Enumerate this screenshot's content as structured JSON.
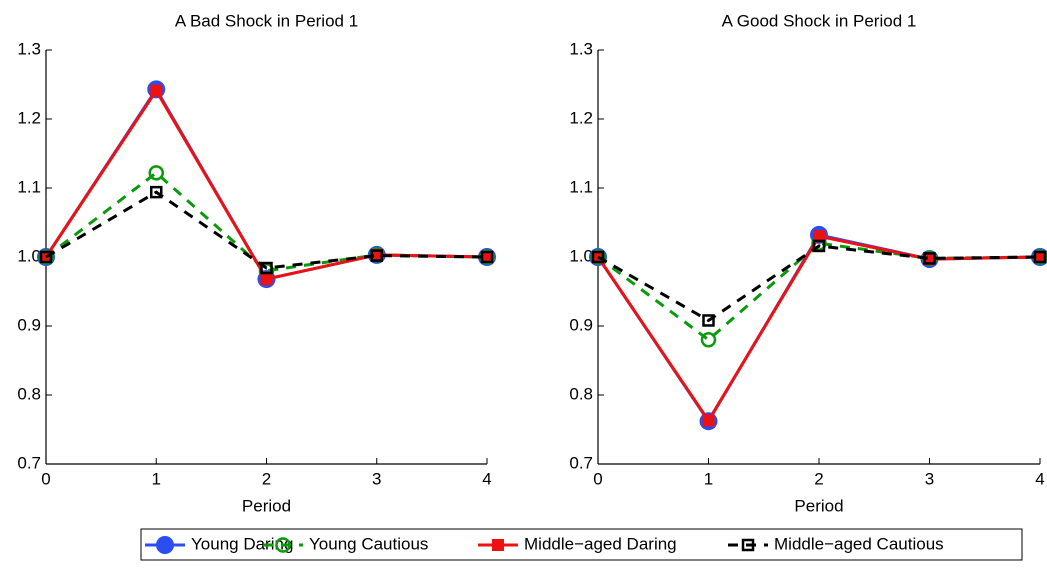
{
  "chart_data": [
    {
      "type": "line",
      "title": "A Bad Shock in Period 1",
      "x_label": "Period",
      "x": [
        0,
        1,
        2,
        3,
        4
      ],
      "xlim": [
        0,
        4
      ],
      "xticks": [
        0,
        1,
        2,
        3,
        4
      ],
      "ylim": [
        0.7,
        1.3
      ],
      "yticks": [
        0.7,
        0.8,
        0.9,
        {
          "value": 1.0,
          "label": "1.0"
        },
        1.1,
        1.2,
        1.3
      ],
      "series": [
        {
          "name": "Young Daring",
          "color": "#2b4ef0",
          "marker": "filled-circle",
          "line_style": "solid",
          "values": [
            1.0,
            1.243,
            0.968,
            1.003,
            1.0
          ]
        },
        {
          "name": "Young Cautious",
          "color": "#0a9a0a",
          "marker": "open-circle",
          "line_style": "dashed",
          "values": [
            1.0,
            1.122,
            0.98,
            1.003,
            1.0
          ]
        },
        {
          "name": "Middle−aged Daring",
          "color": "#ee1111",
          "marker": "filled-square",
          "line_style": "solid",
          "values": [
            1.0,
            1.241,
            0.968,
            1.003,
            1.0
          ]
        },
        {
          "name": "Middle−aged Cautious",
          "color": "#000000",
          "marker": "open-square",
          "line_style": "dashed",
          "values": [
            1.0,
            1.094,
            0.984,
            1.002,
            1.0
          ]
        }
      ]
    },
    {
      "type": "line",
      "title": "A Good Shock in Period 1",
      "x_label": "Period",
      "x": [
        0,
        1,
        2,
        3,
        4
      ],
      "xlim": [
        0,
        4
      ],
      "xticks": [
        0,
        1,
        2,
        3,
        4
      ],
      "ylim": [
        0.7,
        1.3
      ],
      "yticks": [
        0.7,
        0.8,
        0.9,
        {
          "value": 1.0,
          "label": "1.0"
        },
        1.1,
        1.2,
        1.3
      ],
      "series": [
        {
          "color": "#2b4ef0",
          "marker": "filled-circle",
          "line_style": "solid",
          "values": [
            1.0,
            0.762,
            1.032,
            0.997,
            1.0
          ]
        },
        {
          "color": "#0a9a0a",
          "marker": "open-circle",
          "line_style": "dashed",
          "values": [
            1.0,
            0.88,
            1.02,
            0.998,
            1.0
          ]
        },
        {
          "color": "#ee1111",
          "marker": "filled-square",
          "line_style": "solid",
          "values": [
            1.0,
            0.763,
            1.03,
            0.997,
            1.0
          ]
        },
        {
          "color": "#000000",
          "marker": "open-square",
          "line_style": "dashed",
          "values": [
            1.0,
            0.908,
            1.016,
            0.998,
            1.0
          ]
        }
      ]
    }
  ]
}
